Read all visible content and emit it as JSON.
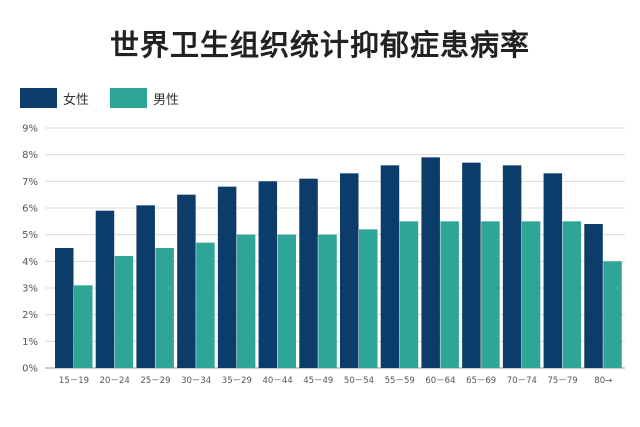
{
  "chart_data": {
    "type": "bar",
    "title": "世界卫生组织统计抑郁症患病率",
    "categories": [
      "15－19",
      "20－24",
      "25－29",
      "30－34",
      "35－29",
      "40－44",
      "45－49",
      "50－54",
      "55－59",
      "60－64",
      "65－69",
      "70－74",
      "75－79",
      "80→"
    ],
    "series": [
      {
        "name": "女性",
        "color": "#0b3c6a",
        "values": [
          4.5,
          5.9,
          6.1,
          6.5,
          6.8,
          7.0,
          7.1,
          7.3,
          7.6,
          7.9,
          7.7,
          7.6,
          7.3,
          5.4
        ]
      },
      {
        "name": "男性",
        "color": "#2ea597",
        "values": [
          3.1,
          4.2,
          4.5,
          4.7,
          5.0,
          5.0,
          5.0,
          5.2,
          5.5,
          5.5,
          5.5,
          5.5,
          5.5,
          4.0
        ]
      }
    ],
    "y_ticks": [
      "0%",
      "1%",
      "2%",
      "3%",
      "4%",
      "5%",
      "6%",
      "7%",
      "8%",
      "9%"
    ],
    "ylim": [
      0,
      9
    ],
    "xlabel": "",
    "ylabel": "",
    "grid": true,
    "legend_position": "top-left"
  }
}
